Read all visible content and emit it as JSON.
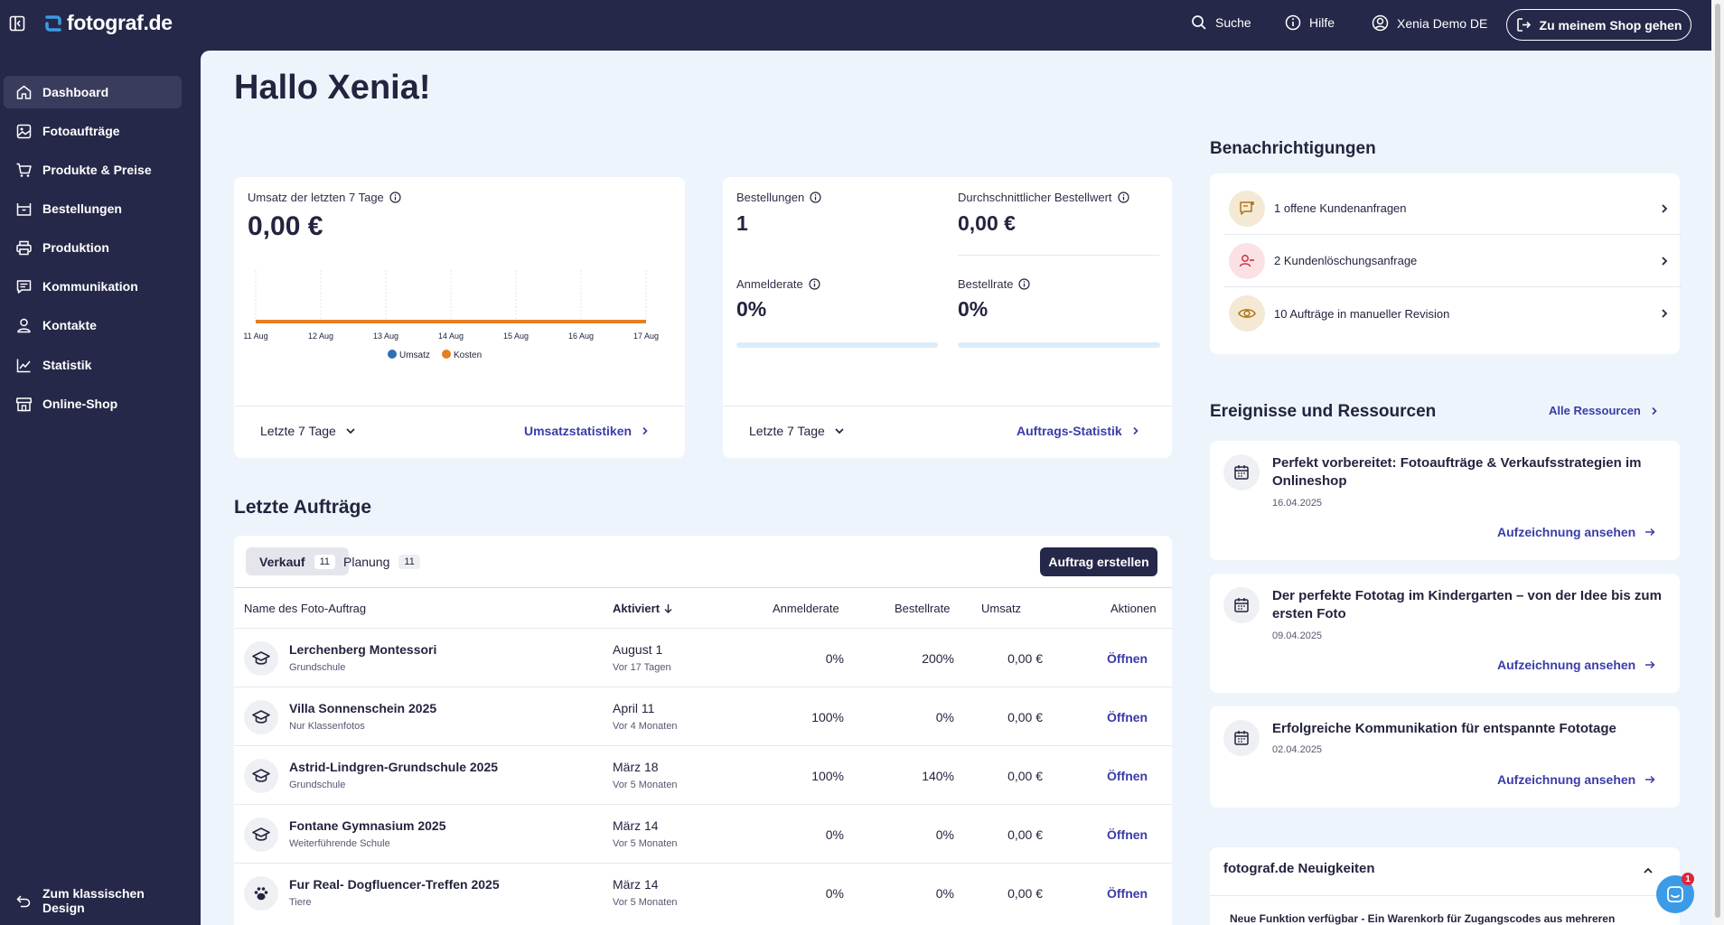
{
  "header": {
    "logo_text": "fotograf.de",
    "search_label": "Suche",
    "help_label": "Hilfe",
    "user_label": "Xenia Demo DE",
    "shop_button": "Zu meinem Shop gehen"
  },
  "sidebar": {
    "items": [
      {
        "label": "Dashboard",
        "icon": "home-icon"
      },
      {
        "label": "Fotoaufträge",
        "icon": "image-icon"
      },
      {
        "label": "Produkte & Preise",
        "icon": "cart-icon"
      },
      {
        "label": "Bestellungen",
        "icon": "box-icon"
      },
      {
        "label": "Produktion",
        "icon": "printer-icon"
      },
      {
        "label": "Kommunikation",
        "icon": "message-icon"
      },
      {
        "label": "Kontakte",
        "icon": "user-icon"
      },
      {
        "label": "Statistik",
        "icon": "chart-icon"
      },
      {
        "label": "Online-Shop",
        "icon": "store-icon"
      }
    ],
    "classic_design": "Zum klassischen Design"
  },
  "greeting": "Hallo Xenia!",
  "revenue_card": {
    "label": "Umsatz der letzten 7 Tage",
    "value": "0,00 €",
    "period": "Letzte 7 Tage",
    "link": "Umsatzstatistiken"
  },
  "chart_data": {
    "type": "line",
    "categories": [
      "11 Aug",
      "12 Aug",
      "13 Aug",
      "14 Aug",
      "15 Aug",
      "16 Aug",
      "17 Aug"
    ],
    "series": [
      {
        "name": "Umsatz",
        "values": [
          0,
          0,
          0,
          0,
          0,
          0,
          0
        ],
        "color": "#2f6fb4"
      },
      {
        "name": "Kosten",
        "values": [
          0,
          0,
          0,
          0,
          0,
          0,
          0
        ],
        "color": "#e67e22"
      }
    ],
    "legend_position": "bottom"
  },
  "orders_card": {
    "orders_label": "Bestellungen",
    "orders_value": "1",
    "avg_label": "Durchschnittlicher Bestellwert",
    "avg_value": "0,00 €",
    "login_label": "Anmelderate",
    "login_value": "0%",
    "login_fraction": 0,
    "order_rate_label": "Bestellrate",
    "order_rate_value": "0%",
    "order_rate_fraction": 0,
    "period": "Letzte 7 Tage",
    "link": "Auftrags-Statistik"
  },
  "recent": {
    "title": "Letzte Aufträge",
    "tabs": [
      {
        "label": "Verkauf",
        "count": "11"
      },
      {
        "label": "Planung",
        "count": "11"
      }
    ],
    "create_button": "Auftrag erstellen",
    "columns": [
      "Name des Foto-Auftrag",
      "Aktiviert",
      "Anmelderate",
      "Bestellrate",
      "Umsatz",
      "Aktionen"
    ],
    "rows": [
      {
        "name": "Lerchenberg Montessori",
        "type": "Grundschule",
        "date": "August 1",
        "ago": "Vor 17 Tagen",
        "login": "0%",
        "order": "200%",
        "revenue": "0,00 €",
        "action": "Öffnen",
        "icon": "graduation-cap-icon"
      },
      {
        "name": "Villa Sonnenschein 2025",
        "type": "Nur Klassenfotos",
        "date": "April 11",
        "ago": "Vor 4 Monaten",
        "login": "100%",
        "order": "0%",
        "revenue": "0,00 €",
        "action": "Öffnen",
        "icon": "graduation-cap-icon"
      },
      {
        "name": "Astrid-Lindgren-Grundschule 2025",
        "type": "Grundschule",
        "date": "März 18",
        "ago": "Vor 5 Monaten",
        "login": "100%",
        "order": "140%",
        "revenue": "0,00 €",
        "action": "Öffnen",
        "icon": "graduation-cap-icon"
      },
      {
        "name": "Fontane Gymnasium 2025",
        "type": "Weiterführende Schule",
        "date": "März 14",
        "ago": "Vor 5 Monaten",
        "login": "0%",
        "order": "0%",
        "revenue": "0,00 €",
        "action": "Öffnen",
        "icon": "graduation-cap-icon"
      },
      {
        "name": "Fur Real- Dogfluencer-Treffen 2025",
        "type": "Tiere",
        "date": "März 14",
        "ago": "Vor 5 Monaten",
        "login": "0%",
        "order": "0%",
        "revenue": "0,00 €",
        "action": "Öffnen",
        "icon": "paw-icon"
      }
    ]
  },
  "notifications": {
    "title": "Benachrichtigungen",
    "items": [
      {
        "text": "1 offene Kundenanfragen",
        "icon": "message-alert-icon",
        "color": "#f4e9d4"
      },
      {
        "text": "2 Kundenlöschungsanfrage",
        "icon": "user-minus-icon",
        "color": "#fbe1e4"
      },
      {
        "text": "10 Aufträge in manueller Revision",
        "icon": "eye-icon",
        "color": "#f4e9d4"
      }
    ]
  },
  "events": {
    "title": "Ereignisse und Ressourcen",
    "all_link": "Alle Ressourcen",
    "items": [
      {
        "title": "Perfekt vorbereitet: Fotoaufträge & Verkaufsstrategien im Onlineshop",
        "date": "16.04.2025",
        "link": "Aufzeichnung ansehen"
      },
      {
        "title": "Der perfekte Fototag im Kindergarten – von der Idee bis zum ersten Foto",
        "date": "09.04.2025",
        "link": "Aufzeichnung ansehen"
      },
      {
        "title": "Erfolgreiche Kommunikation für entspannte Fototage",
        "date": "02.04.2025",
        "link": "Aufzeichnung ansehen"
      }
    ]
  },
  "news": {
    "title": "fotograf.de Neuigkeiten",
    "preview": "Neue Funktion verfügbar - Ein Warenkorb für Zugangscodes aus mehreren"
  },
  "chat_badge": "1"
}
